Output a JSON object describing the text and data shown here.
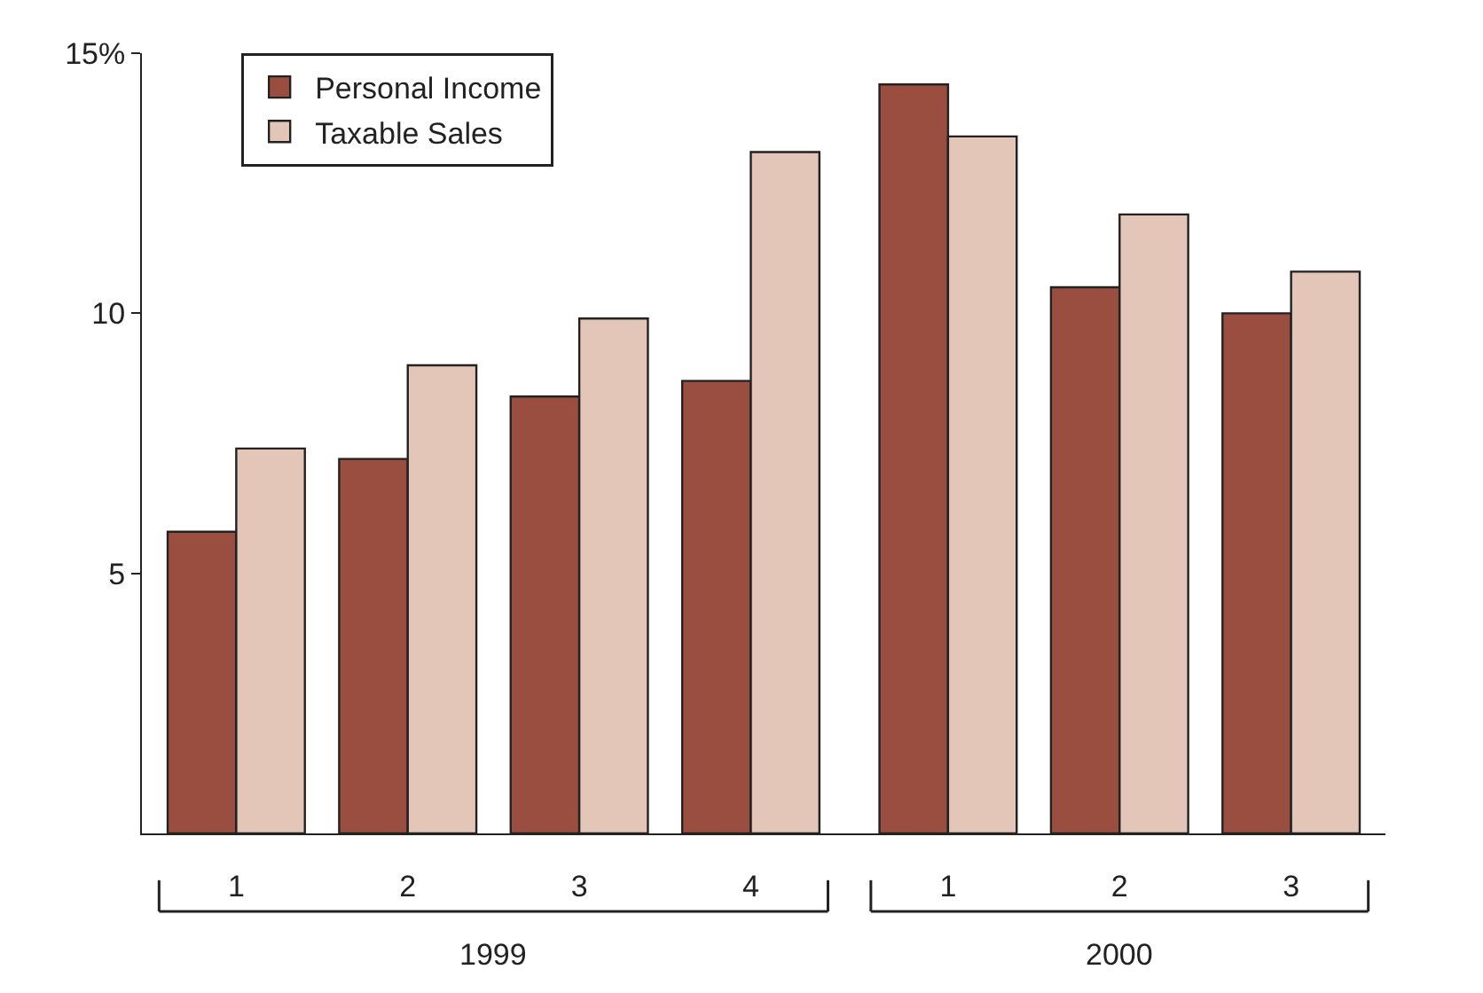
{
  "chart_data": {
    "type": "bar",
    "categories": [
      "1",
      "2",
      "3",
      "4",
      "1",
      "2",
      "3"
    ],
    "series": [
      {
        "name": "Personal Income",
        "color": "#9a4e40",
        "values": [
          5.8,
          7.2,
          8.4,
          8.7,
          14.4,
          10.5,
          10.0
        ]
      },
      {
        "name": "Taxable Sales",
        "color": "#e3c6b8",
        "values": [
          7.4,
          9.0,
          9.9,
          13.1,
          13.4,
          11.9,
          10.8
        ]
      }
    ],
    "ylim": [
      0,
      15
    ],
    "yticks": [
      5,
      10,
      {
        "value": 15,
        "label": "15%"
      }
    ],
    "legend": "top left",
    "annotations": [
      "1999",
      "2000"
    ]
  }
}
